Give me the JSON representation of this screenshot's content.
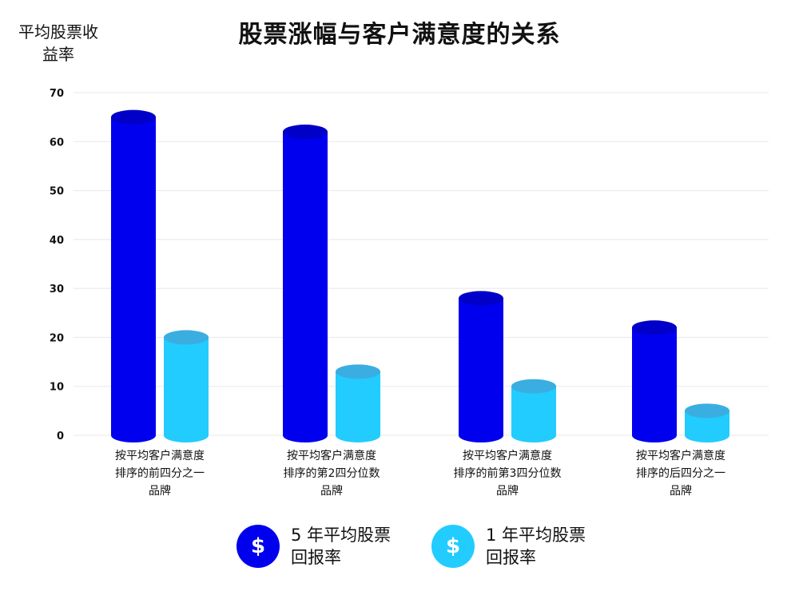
{
  "chart_data": {
    "type": "bar",
    "title": "股票涨幅与客户满意度的关系",
    "ylabel": "平均股票收益率",
    "ylim": [
      0,
      70
    ],
    "yticks": [
      0,
      10,
      20,
      30,
      40,
      50,
      60,
      70
    ],
    "categories": [
      [
        "按平均客户满意度",
        "排序的前四分之一",
        "品牌"
      ],
      [
        "按平均客户满意度",
        "排序的第2四分位数",
        "品牌"
      ],
      [
        "按平均客户满意度",
        "排序的前第3四分位数",
        "品牌"
      ],
      [
        "按平均客户满意度",
        "排序的后四分之一",
        "品牌"
      ]
    ],
    "series": [
      {
        "name": "5 年平均股票回报率",
        "values": [
          65,
          62,
          28,
          22
        ],
        "color": "#0000ee",
        "top_color": "#0000c8"
      },
      {
        "name": "1 年平均股票回报率",
        "values": [
          20,
          13,
          10,
          5
        ],
        "color": "#22ccff",
        "top_color": "#3aaee0"
      }
    ],
    "grid": true,
    "legend_position": "bottom"
  },
  "legend": {
    "items": [
      {
        "icon": "dollar-icon",
        "symbol": "$",
        "line1": "5 年平均股票",
        "line2": "回报率",
        "color": "#0000ee"
      },
      {
        "icon": "dollar-icon",
        "symbol": "$",
        "line1": "1 年平均股票",
        "line2": "回报率",
        "color": "#22ccff"
      }
    ]
  }
}
